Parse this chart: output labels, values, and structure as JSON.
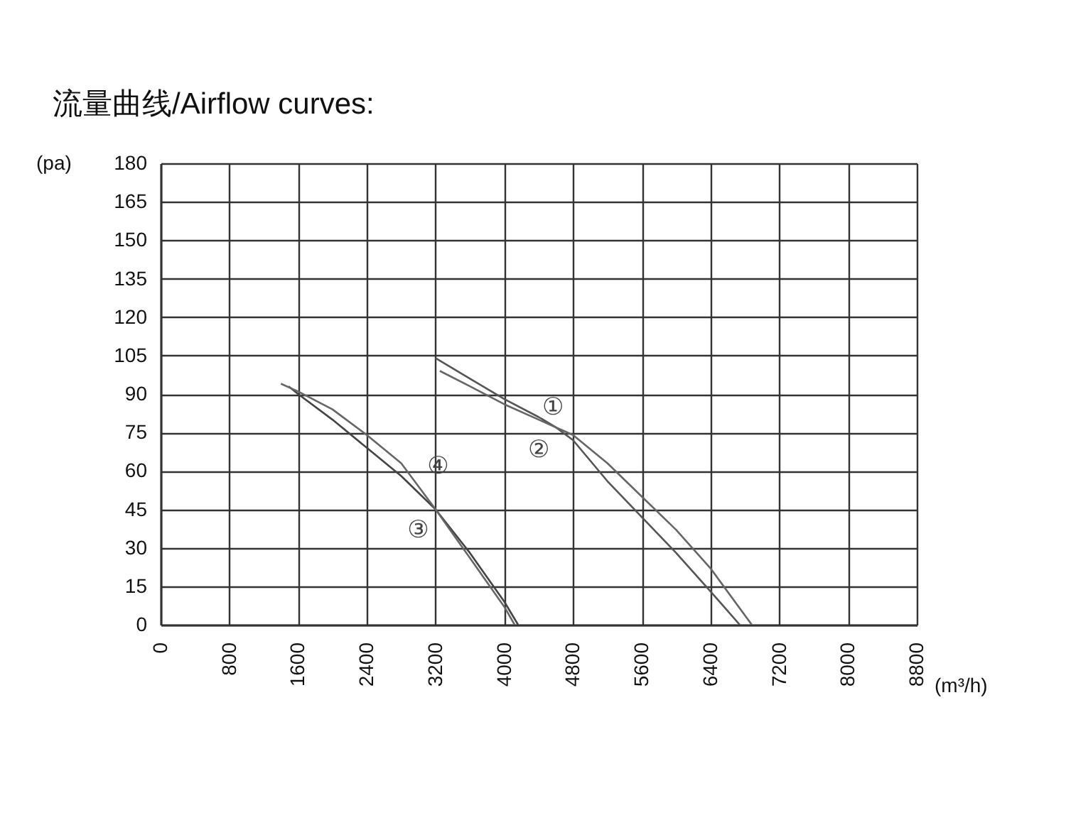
{
  "chart_data": {
    "type": "line",
    "title": "流量曲线/Airflow curves:",
    "xlabel": "(m³/h)",
    "ylabel": "(pa)",
    "xlim": [
      0,
      8800
    ],
    "xticks": [
      0,
      800,
      1600,
      2400,
      3200,
      4000,
      4800,
      5600,
      6400,
      7200,
      8000,
      8800
    ],
    "ylim": [
      0,
      180
    ],
    "yticks": [
      0,
      15,
      30,
      45,
      60,
      75,
      90,
      105,
      120,
      135,
      150,
      165,
      180
    ],
    "grid": true,
    "series": [
      {
        "name": "①",
        "color": "#555555",
        "x": [
          3200,
          3600,
          4000,
          4400,
          4600,
          4800,
          5200,
          5600,
          6000,
          6400,
          6740
        ],
        "values": [
          104,
          96,
          88,
          81,
          77,
          72,
          56,
          42,
          28,
          13,
          0
        ]
      },
      {
        "name": "②",
        "color": "#666666",
        "x": [
          3250,
          3600,
          4000,
          4400,
          4600,
          4800,
          5200,
          5600,
          6000,
          6400,
          6880
        ],
        "values": [
          99,
          93,
          86,
          80,
          77,
          74,
          63,
          50,
          37,
          22,
          0
        ]
      },
      {
        "name": "③",
        "color": "#444444",
        "x": [
          1490,
          1600,
          2000,
          2400,
          2800,
          3200,
          3600,
          4000,
          4160
        ],
        "values": [
          93,
          90,
          80,
          69,
          58,
          45,
          28,
          9,
          0
        ]
      },
      {
        "name": "④",
        "color": "#666666",
        "x": [
          1400,
          1600,
          2000,
          2400,
          2800,
          3200,
          3600,
          4000,
          4120
        ],
        "values": [
          94,
          91,
          84,
          74,
          63,
          45,
          26,
          7,
          0
        ]
      }
    ]
  }
}
